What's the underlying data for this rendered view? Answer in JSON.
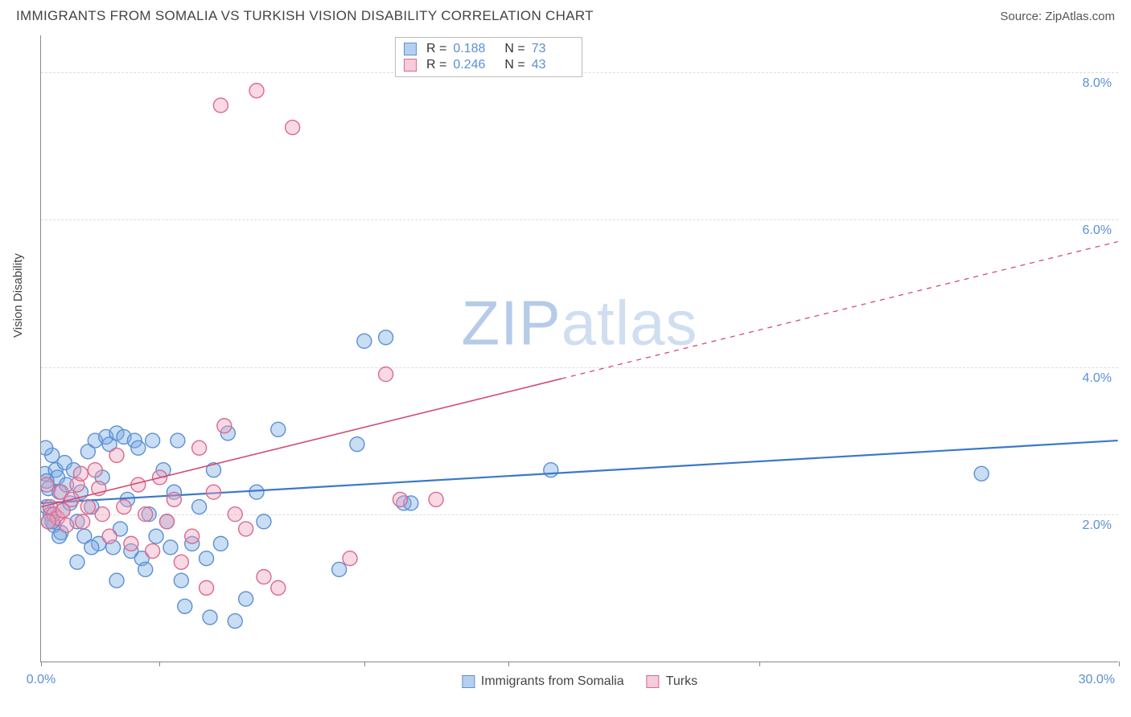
{
  "header": {
    "title": "IMMIGRANTS FROM SOMALIA VS TURKISH VISION DISABILITY CORRELATION CHART",
    "source_prefix": "Source: ",
    "source_name": "ZipAtlas.com"
  },
  "watermark": {
    "zip": "ZIP",
    "atlas": "atlas"
  },
  "chart": {
    "type": "scatter",
    "ylabel": "Vision Disability",
    "xlim": [
      0,
      30
    ],
    "ylim": [
      0,
      8.5
    ],
    "xticks": [
      0,
      3.3,
      9.0,
      13.0,
      20.0,
      30.0
    ],
    "yticks": [
      2.0,
      4.0,
      6.0,
      8.0
    ],
    "x_tick_labels": {
      "0": "0.0%",
      "30": "30.0%"
    },
    "y_tick_labels": {
      "2": "2.0%",
      "4": "4.0%",
      "6": "6.0%",
      "8": "8.0%"
    },
    "background_color": "#ffffff",
    "grid_color": "#dddddd",
    "axis_color": "#888888",
    "marker_radius": 9,
    "marker_stroke_width": 1.4,
    "series": [
      {
        "name": "Immigrants from Somalia",
        "color_fill": "rgba(120,170,225,0.40)",
        "color_stroke": "#5b8fd6",
        "r_label": "R =",
        "r_value": "0.188",
        "n_label": "N =",
        "n_value": "73",
        "trend": {
          "x1": 0,
          "y1": 2.15,
          "x2": 30,
          "y2": 3.0,
          "solid_to_x": 30,
          "stroke": "#3b78c9",
          "width": 2.2
        },
        "points": [
          [
            0.1,
            2.55
          ],
          [
            0.2,
            2.35
          ],
          [
            0.15,
            2.1
          ],
          [
            0.3,
            2.8
          ],
          [
            0.25,
            2.0
          ],
          [
            0.4,
            2.6
          ],
          [
            0.35,
            1.85
          ],
          [
            0.5,
            2.3
          ],
          [
            0.45,
            2.5
          ],
          [
            0.6,
            2.05
          ],
          [
            0.55,
            1.75
          ],
          [
            0.7,
            2.4
          ],
          [
            0.65,
            2.7
          ],
          [
            0.8,
            2.15
          ],
          [
            0.9,
            2.6
          ],
          [
            1.0,
            1.9
          ],
          [
            1.1,
            2.3
          ],
          [
            1.2,
            1.7
          ],
          [
            1.3,
            2.85
          ],
          [
            1.4,
            2.1
          ],
          [
            1.5,
            3.0
          ],
          [
            1.6,
            1.6
          ],
          [
            1.7,
            2.5
          ],
          [
            1.8,
            3.05
          ],
          [
            1.9,
            2.95
          ],
          [
            2.0,
            1.55
          ],
          [
            2.1,
            3.1
          ],
          [
            2.2,
            1.8
          ],
          [
            2.3,
            3.05
          ],
          [
            2.4,
            2.2
          ],
          [
            2.5,
            1.5
          ],
          [
            2.6,
            3.0
          ],
          [
            2.7,
            2.9
          ],
          [
            2.8,
            1.4
          ],
          [
            2.9,
            1.25
          ],
          [
            3.0,
            2.0
          ],
          [
            3.1,
            3.0
          ],
          [
            3.2,
            1.7
          ],
          [
            3.4,
            2.6
          ],
          [
            3.5,
            1.9
          ],
          [
            3.6,
            1.55
          ],
          [
            3.7,
            2.3
          ],
          [
            3.8,
            3.0
          ],
          [
            3.9,
            1.1
          ],
          [
            0.12,
            2.9
          ],
          [
            4.0,
            0.75
          ],
          [
            4.2,
            1.6
          ],
          [
            4.4,
            2.1
          ],
          [
            4.6,
            1.4
          ],
          [
            4.7,
            0.6
          ],
          [
            4.8,
            2.6
          ],
          [
            5.0,
            1.6
          ],
          [
            5.2,
            3.1
          ],
          [
            5.4,
            0.55
          ],
          [
            5.7,
            0.85
          ],
          [
            6.0,
            2.3
          ],
          [
            6.2,
            1.9
          ],
          [
            6.6,
            3.15
          ],
          [
            8.3,
            1.25
          ],
          [
            8.8,
            2.95
          ],
          [
            9.0,
            4.35
          ],
          [
            9.6,
            4.4
          ],
          [
            10.1,
            2.15
          ],
          [
            10.3,
            2.15
          ],
          [
            14.2,
            2.6
          ],
          [
            26.2,
            2.55
          ],
          [
            2.1,
            1.1
          ],
          [
            1.0,
            1.35
          ],
          [
            1.4,
            1.55
          ],
          [
            0.3,
            1.9
          ],
          [
            0.5,
            1.7
          ],
          [
            0.2,
            1.9
          ],
          [
            0.15,
            2.45
          ]
        ]
      },
      {
        "name": "Turks",
        "color_fill": "rgba(240,160,185,0.40)",
        "color_stroke": "#d96a8e",
        "r_label": "R =",
        "r_value": "0.246",
        "n_label": "N =",
        "n_value": "43",
        "trend": {
          "x1": 0,
          "y1": 2.1,
          "x2": 30,
          "y2": 5.7,
          "solid_to_x": 14.5,
          "stroke": "#d24a77",
          "width": 1.6
        },
        "points": [
          [
            0.15,
            2.4
          ],
          [
            0.25,
            2.1
          ],
          [
            0.35,
            2.0
          ],
          [
            0.45,
            1.95
          ],
          [
            0.55,
            2.3
          ],
          [
            0.7,
            1.85
          ],
          [
            0.85,
            2.2
          ],
          [
            1.0,
            2.4
          ],
          [
            1.15,
            1.9
          ],
          [
            1.3,
            2.1
          ],
          [
            1.5,
            2.6
          ],
          [
            1.7,
            2.0
          ],
          [
            1.9,
            1.7
          ],
          [
            2.1,
            2.8
          ],
          [
            2.3,
            2.1
          ],
          [
            2.5,
            1.6
          ],
          [
            2.7,
            2.4
          ],
          [
            2.9,
            2.0
          ],
          [
            3.1,
            1.5
          ],
          [
            3.3,
            2.5
          ],
          [
            3.5,
            1.9
          ],
          [
            3.7,
            2.2
          ],
          [
            3.9,
            1.35
          ],
          [
            4.2,
            1.7
          ],
          [
            4.4,
            2.9
          ],
          [
            4.6,
            1.0
          ],
          [
            4.8,
            2.3
          ],
          [
            5.0,
            7.55
          ],
          [
            5.1,
            3.2
          ],
          [
            5.4,
            2.0
          ],
          [
            5.7,
            1.8
          ],
          [
            6.0,
            7.75
          ],
          [
            6.2,
            1.15
          ],
          [
            6.6,
            1.0
          ],
          [
            7.0,
            7.25
          ],
          [
            8.6,
            1.4
          ],
          [
            9.6,
            3.9
          ],
          [
            10.0,
            2.2
          ],
          [
            11.0,
            2.2
          ],
          [
            0.2,
            1.9
          ],
          [
            0.6,
            2.05
          ],
          [
            1.1,
            2.55
          ],
          [
            1.6,
            2.35
          ]
        ]
      }
    ]
  }
}
